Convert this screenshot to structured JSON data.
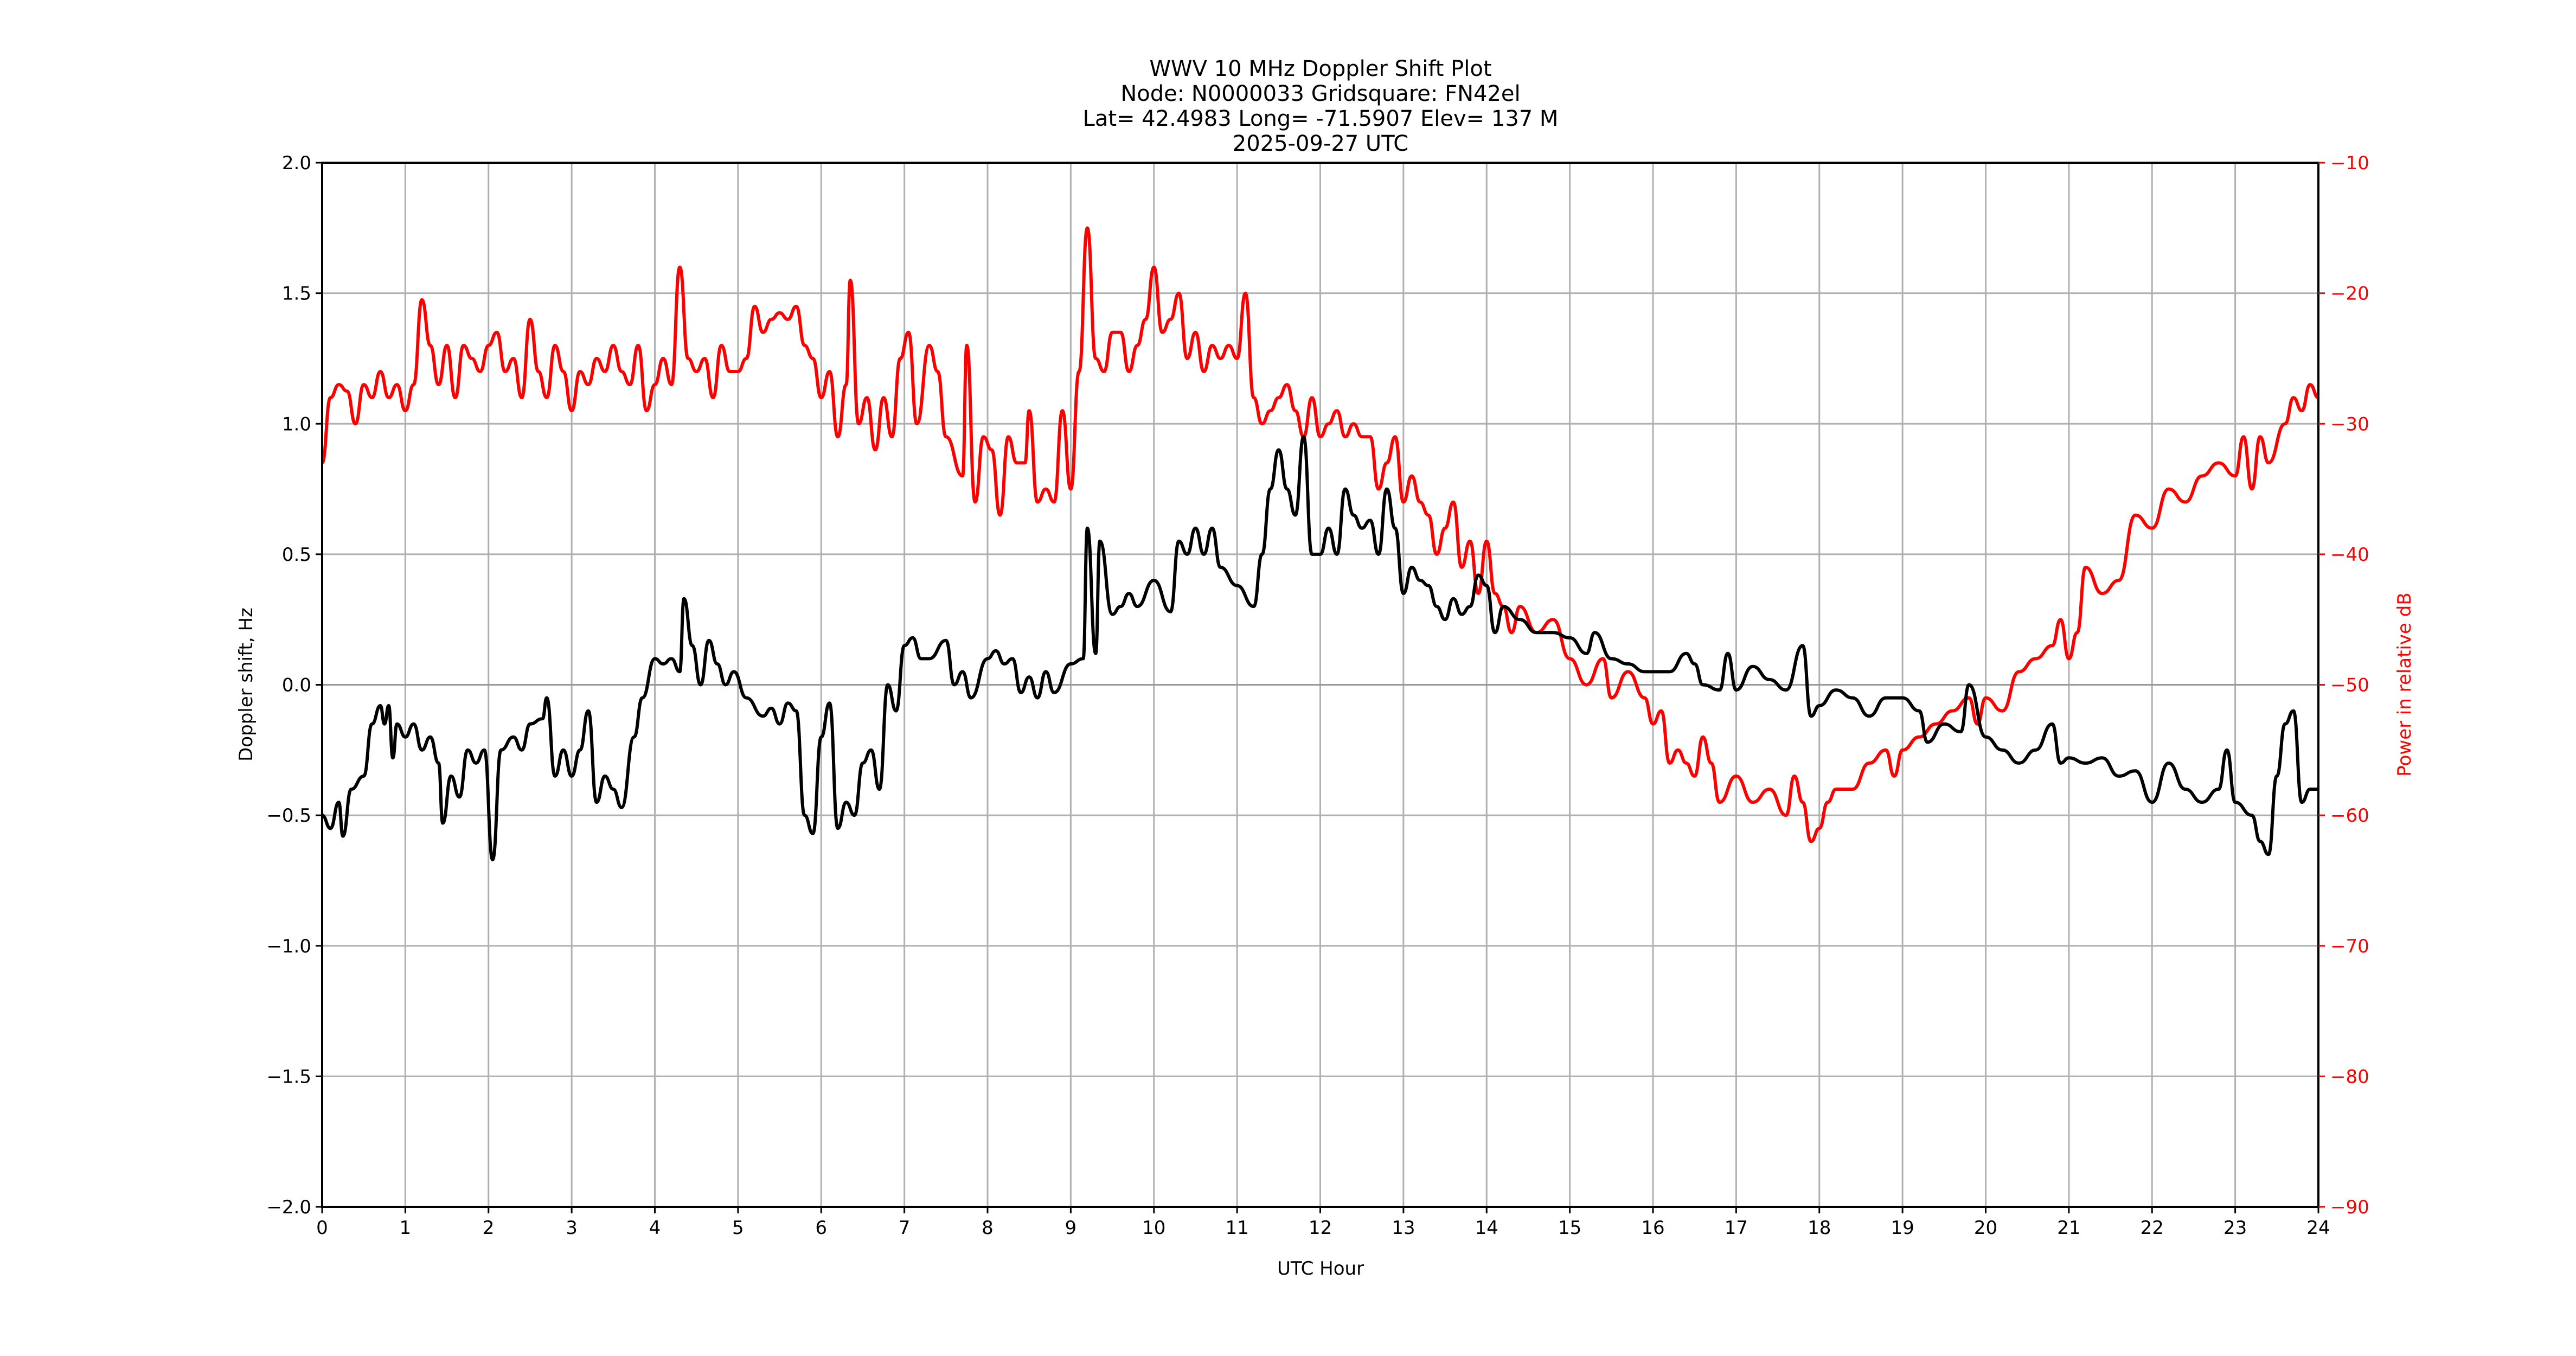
{
  "chart_data": {
    "type": "line",
    "title_lines": [
      "WWV 10 MHz Doppler Shift Plot",
      "Node:  N0000033     Gridsquare:  FN42el",
      "Lat= 42.4983    Long= -71.5907    Elev= 137 M",
      "2025-09-27  UTC"
    ],
    "xlabel": "UTC Hour",
    "ylabel": "Doppler shift, Hz",
    "y2label": "Power in relative dB",
    "xlim": [
      0,
      24
    ],
    "ylim": [
      -2.0,
      2.0
    ],
    "y2lim": [
      -90,
      -10
    ],
    "grid": true,
    "x_ticks": [
      "0",
      "1",
      "2",
      "3",
      "4",
      "5",
      "6",
      "7",
      "8",
      "9",
      "10",
      "11",
      "12",
      "13",
      "14",
      "15",
      "16",
      "17",
      "18",
      "19",
      "20",
      "21",
      "22",
      "23",
      "24"
    ],
    "y_ticks": [
      "2.0",
      "1.5",
      "1.0",
      "0.5",
      "0.0",
      "−0.5",
      "−1.0",
      "−1.5",
      "−2.0"
    ],
    "y2_ticks": [
      "−10",
      "−20",
      "−30",
      "−40",
      "−50",
      "−60",
      "−70",
      "−80",
      "−90"
    ],
    "colors": {
      "doppler": "#000000",
      "power": "#ff0000",
      "grid": "#b0b0b0"
    },
    "series": [
      {
        "name": "Doppler shift",
        "axis": "left",
        "x": [
          0,
          0.1,
          0.2,
          0.25,
          0.35,
          0.5,
          0.6,
          0.7,
          0.75,
          0.8,
          0.85,
          0.9,
          1.0,
          1.1,
          1.2,
          1.3,
          1.4,
          1.45,
          1.55,
          1.65,
          1.75,
          1.85,
          1.95,
          2.05,
          2.15,
          2.3,
          2.4,
          2.5,
          2.65,
          2.7,
          2.8,
          2.9,
          3.0,
          3.1,
          3.2,
          3.3,
          3.4,
          3.5,
          3.6,
          3.75,
          3.85,
          4.0,
          4.1,
          4.2,
          4.3,
          4.35,
          4.45,
          4.55,
          4.65,
          4.75,
          4.85,
          4.95,
          5.1,
          5.3,
          5.4,
          5.5,
          5.6,
          5.7,
          5.8,
          5.9,
          6.0,
          6.1,
          6.2,
          6.3,
          6.4,
          6.5,
          6.6,
          6.7,
          6.8,
          6.9,
          7.0,
          7.1,
          7.2,
          7.3,
          7.5,
          7.6,
          7.7,
          7.8,
          8.0,
          8.1,
          8.2,
          8.3,
          8.4,
          8.5,
          8.6,
          8.7,
          8.8,
          9.0,
          9.15,
          9.2,
          9.3,
          9.35,
          9.5,
          9.6,
          9.7,
          9.8,
          10.0,
          10.2,
          10.3,
          10.4,
          10.5,
          10.6,
          10.7,
          10.8,
          11.0,
          11.2,
          11.3,
          11.4,
          11.5,
          11.6,
          11.7,
          11.8,
          11.9,
          12.0,
          12.1,
          12.2,
          12.3,
          12.4,
          12.5,
          12.6,
          12.7,
          12.8,
          12.9,
          13.0,
          13.1,
          13.2,
          13.3,
          13.4,
          13.5,
          13.6,
          13.7,
          13.8,
          13.9,
          14.0,
          14.1,
          14.2,
          14.4,
          14.6,
          14.8,
          15.0,
          15.2,
          15.3,
          15.5,
          15.7,
          15.9,
          16.0,
          16.2,
          16.4,
          16.5,
          16.6,
          16.8,
          16.9,
          17.0,
          17.2,
          17.4,
          17.6,
          17.8,
          17.9,
          18.0,
          18.2,
          18.4,
          18.6,
          18.8,
          19.0,
          19.2,
          19.3,
          19.5,
          19.7,
          19.8,
          20.0,
          20.2,
          20.4,
          20.6,
          20.8,
          20.9,
          21.0,
          21.2,
          21.4,
          21.6,
          21.8,
          22.0,
          22.2,
          22.4,
          22.6,
          22.8,
          22.9,
          23.0,
          23.2,
          23.3,
          23.4,
          23.5,
          23.6,
          23.7,
          23.8,
          23.9,
          24
        ],
        "y": [
          -0.5,
          -0.55,
          -0.45,
          -0.58,
          -0.4,
          -0.35,
          -0.15,
          -0.08,
          -0.15,
          -0.08,
          -0.28,
          -0.15,
          -0.2,
          -0.15,
          -0.25,
          -0.2,
          -0.3,
          -0.53,
          -0.35,
          -0.43,
          -0.25,
          -0.3,
          -0.25,
          -0.67,
          -0.25,
          -0.2,
          -0.25,
          -0.15,
          -0.13,
          -0.05,
          -0.35,
          -0.25,
          -0.35,
          -0.25,
          -0.1,
          -0.45,
          -0.35,
          -0.4,
          -0.47,
          -0.2,
          -0.05,
          0.1,
          0.08,
          0.1,
          0.05,
          0.33,
          0.15,
          0.0,
          0.17,
          0.08,
          0.0,
          0.05,
          -0.05,
          -0.12,
          -0.09,
          -0.15,
          -0.07,
          -0.1,
          -0.5,
          -0.57,
          -0.2,
          -0.07,
          -0.55,
          -0.45,
          -0.5,
          -0.3,
          -0.25,
          -0.4,
          0.0,
          -0.1,
          0.15,
          0.18,
          0.1,
          0.1,
          0.17,
          0.0,
          0.05,
          -0.05,
          0.1,
          0.13,
          0.08,
          0.1,
          -0.03,
          0.03,
          -0.05,
          0.05,
          -0.03,
          0.08,
          0.1,
          0.6,
          0.12,
          0.55,
          0.27,
          0.3,
          0.35,
          0.3,
          0.4,
          0.28,
          0.55,
          0.5,
          0.6,
          0.5,
          0.6,
          0.45,
          0.38,
          0.3,
          0.5,
          0.75,
          0.9,
          0.75,
          0.65,
          0.95,
          0.5,
          0.5,
          0.6,
          0.5,
          0.75,
          0.65,
          0.6,
          0.63,
          0.5,
          0.75,
          0.6,
          0.35,
          0.45,
          0.4,
          0.38,
          0.3,
          0.25,
          0.33,
          0.27,
          0.3,
          0.42,
          0.38,
          0.2,
          0.3,
          0.25,
          0.2,
          0.2,
          0.18,
          0.12,
          0.2,
          0.1,
          0.08,
          0.05,
          0.05,
          0.05,
          0.12,
          0.08,
          0.0,
          -0.02,
          0.12,
          -0.02,
          0.07,
          0.02,
          -0.02,
          0.15,
          -0.12,
          -0.08,
          -0.02,
          -0.05,
          -0.12,
          -0.05,
          -0.05,
          -0.1,
          -0.22,
          -0.15,
          -0.18,
          0.0,
          -0.2,
          -0.25,
          -0.3,
          -0.25,
          -0.15,
          -0.3,
          -0.28,
          -0.3,
          -0.28,
          -0.35,
          -0.33,
          -0.45,
          -0.3,
          -0.4,
          -0.45,
          -0.4,
          -0.25,
          -0.45,
          -0.5,
          -0.6,
          -0.65,
          -0.35,
          -0.15,
          -0.1,
          -0.45,
          -0.4,
          -0.4
        ]
      },
      {
        "name": "Power",
        "axis": "right",
        "x": [
          0,
          0.1,
          0.2,
          0.3,
          0.4,
          0.5,
          0.6,
          0.7,
          0.8,
          0.9,
          1.0,
          1.1,
          1.2,
          1.3,
          1.4,
          1.5,
          1.6,
          1.7,
          1.8,
          1.9,
          2.0,
          2.1,
          2.2,
          2.3,
          2.4,
          2.5,
          2.6,
          2.7,
          2.8,
          2.9,
          3.0,
          3.1,
          3.2,
          3.3,
          3.4,
          3.5,
          3.6,
          3.7,
          3.8,
          3.9,
          4.0,
          4.1,
          4.2,
          4.3,
          4.4,
          4.5,
          4.6,
          4.7,
          4.8,
          4.9,
          5.0,
          5.1,
          5.2,
          5.3,
          5.4,
          5.5,
          5.6,
          5.7,
          5.8,
          5.9,
          6.0,
          6.1,
          6.2,
          6.3,
          6.35,
          6.45,
          6.55,
          6.65,
          6.75,
          6.85,
          6.95,
          7.05,
          7.15,
          7.3,
          7.4,
          7.5,
          7.7,
          7.75,
          7.85,
          7.95,
          8.05,
          8.15,
          8.25,
          8.35,
          8.45,
          8.5,
          8.6,
          8.7,
          8.8,
          8.9,
          9.0,
          9.1,
          9.2,
          9.3,
          9.4,
          9.5,
          9.6,
          9.7,
          9.8,
          9.9,
          10.0,
          10.1,
          10.2,
          10.3,
          10.4,
          10.5,
          10.6,
          10.7,
          10.8,
          10.9,
          11.0,
          11.1,
          11.2,
          11.3,
          11.4,
          11.5,
          11.6,
          11.7,
          11.8,
          11.9,
          12.0,
          12.1,
          12.2,
          12.3,
          12.4,
          12.5,
          12.6,
          12.7,
          12.8,
          12.9,
          13.0,
          13.1,
          13.2,
          13.3,
          13.4,
          13.5,
          13.6,
          13.7,
          13.8,
          13.9,
          14.0,
          14.1,
          14.2,
          14.3,
          14.4,
          14.6,
          14.8,
          15.0,
          15.2,
          15.4,
          15.5,
          15.7,
          15.9,
          16.0,
          16.1,
          16.2,
          16.3,
          16.4,
          16.5,
          16.6,
          16.7,
          16.8,
          17.0,
          17.2,
          17.4,
          17.6,
          17.7,
          17.8,
          17.9,
          18.0,
          18.1,
          18.2,
          18.4,
          18.6,
          18.8,
          18.9,
          19.0,
          19.2,
          19.4,
          19.6,
          19.8,
          19.9,
          20.0,
          20.2,
          20.4,
          20.6,
          20.8,
          20.9,
          21.0,
          21.1,
          21.2,
          21.4,
          21.6,
          21.8,
          22.0,
          22.2,
          22.4,
          22.6,
          22.8,
          23.0,
          23.1,
          23.2,
          23.3,
          23.4,
          23.6,
          23.7,
          23.8,
          23.9,
          24
        ],
        "y": [
          -33,
          -28,
          -27,
          -27.5,
          -30,
          -27,
          -28,
          -26,
          -28,
          -27,
          -29,
          -27,
          -20.5,
          -24,
          -27,
          -24,
          -28,
          -24,
          -25,
          -26,
          -24,
          -23,
          -26,
          -25,
          -28,
          -22,
          -26,
          -28,
          -24,
          -26,
          -29,
          -26,
          -27,
          -25,
          -26,
          -24,
          -26,
          -27,
          -24,
          -29,
          -27,
          -25,
          -27,
          -18,
          -25,
          -26,
          -25,
          -28,
          -24,
          -26,
          -26,
          -25,
          -21,
          -23,
          -22,
          -21.5,
          -22,
          -21,
          -24,
          -25,
          -28,
          -26,
          -31,
          -27,
          -19,
          -30,
          -28,
          -32,
          -28,
          -31,
          -25,
          -23,
          -30,
          -24,
          -26,
          -31,
          -34,
          -24,
          -36,
          -31,
          -32,
          -37,
          -31,
          -33,
          -33,
          -29,
          -36,
          -35,
          -36,
          -29,
          -35,
          -26,
          -15,
          -25,
          -26,
          -23,
          -23,
          -26,
          -24,
          -22,
          -18,
          -23,
          -22,
          -20,
          -25,
          -23,
          -26,
          -24,
          -25,
          -24,
          -25,
          -20,
          -28,
          -30,
          -29,
          -28,
          -27,
          -29,
          -31,
          -28,
          -31,
          -30,
          -29,
          -31,
          -30,
          -31,
          -31,
          -35,
          -33,
          -31,
          -36,
          -34,
          -36,
          -37,
          -40,
          -38,
          -36,
          -41,
          -39,
          -43,
          -39,
          -43,
          -44,
          -46,
          -44,
          -46,
          -45,
          -48,
          -50,
          -48,
          -51,
          -49,
          -51,
          -53,
          -52,
          -56,
          -55,
          -56,
          -57,
          -54,
          -56,
          -59,
          -57,
          -59,
          -58,
          -60,
          -57,
          -59,
          -62,
          -61,
          -59,
          -58,
          -58,
          -56,
          -55,
          -57,
          -55,
          -54,
          -53,
          -52,
          -51,
          -53,
          -51,
          -52,
          -49,
          -48,
          -47,
          -45,
          -48,
          -46,
          -41,
          -43,
          -42,
          -37,
          -38,
          -35,
          -36,
          -34,
          -33,
          -34,
          -31,
          -35,
          -31,
          -33,
          -30,
          -28,
          -29,
          -27,
          -28
        ]
      }
    ]
  }
}
